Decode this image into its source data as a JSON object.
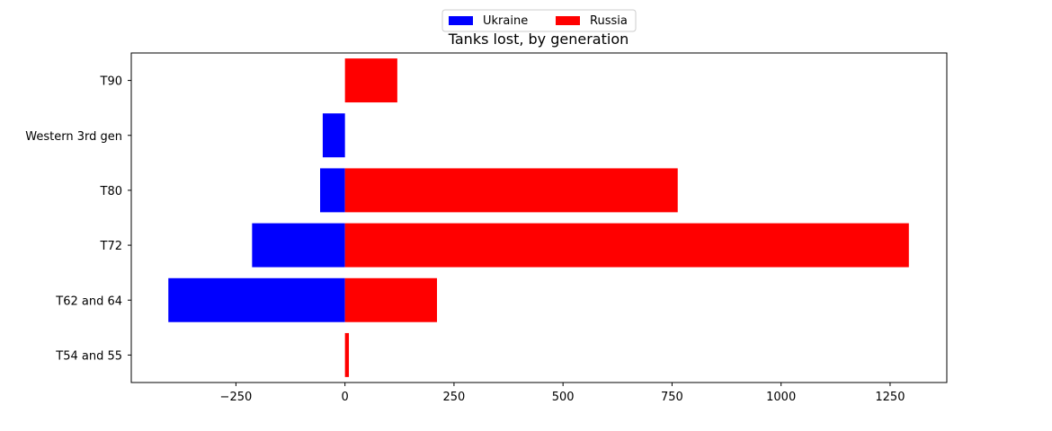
{
  "chart_data": {
    "type": "bar",
    "orientation": "horizontal",
    "title": "Tanks lost, by generation",
    "categories": [
      "T54 and 55",
      "T62 and 64",
      "T72",
      "T80",
      "Western 3rd gen",
      "T90"
    ],
    "series": [
      {
        "name": "Ukraine",
        "color": "#0000ff",
        "values": [
          0,
          -405,
          -213,
          -57,
          -51,
          0
        ]
      },
      {
        "name": "Russia",
        "color": "#ff0000",
        "values": [
          9,
          211,
          1293,
          763,
          0,
          120
        ]
      }
    ],
    "xlim": [
      -490,
      1380
    ],
    "xticks": [
      -250,
      0,
      250,
      500,
      750,
      1000,
      1250
    ],
    "xtick_labels": [
      "−250",
      "0",
      "250",
      "500",
      "750",
      "1000",
      "1250"
    ],
    "legend_position": "top-center",
    "grid": false
  }
}
